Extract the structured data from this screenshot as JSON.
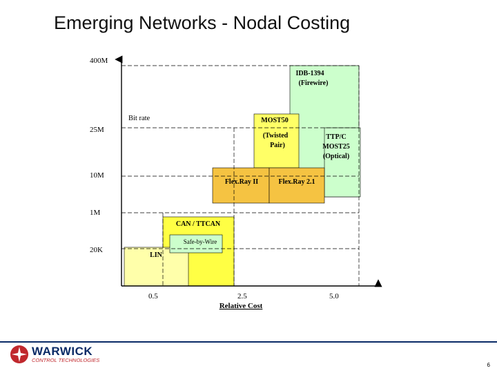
{
  "slide": {
    "title": "Emerging Networks - Nodal Costing",
    "page_number": "6"
  },
  "logo": {
    "name": "WARWICK",
    "subtitle": "CONTROL TECHNOLOGIES"
  },
  "chart_data": {
    "type": "diagram",
    "xlabel": "Relative Cost",
    "x_ticks": [
      "0.5",
      "2.5",
      "5.0"
    ],
    "y_label_inline": "Bit rate",
    "y_ticks": [
      "400M",
      "25M",
      "10M",
      "1M",
      "20K"
    ],
    "regions": [
      {
        "name": "IDB-1394",
        "label_lines": [
          "IDB-1394",
          "(Firewire)"
        ],
        "color": "#ccffcc"
      },
      {
        "name": "TTP/C MOST25",
        "label_lines": [
          "TTP/C",
          "MOST25",
          "(Optical)"
        ],
        "color": "#ccffcc"
      },
      {
        "name": "MOST50",
        "label_lines": [
          "MOST50",
          "(Twisted",
          "Pair)"
        ],
        "color": "#ffff66"
      },
      {
        "name": "Flex.Ray II",
        "label_lines": [
          "Flex.Ray II"
        ],
        "color": "#f5c342"
      },
      {
        "name": "Flex.Ray 2.1",
        "label_lines": [
          "Flex.Ray 2.1"
        ],
        "color": "#f5c342"
      },
      {
        "name": "CAN / TTCAN",
        "label_lines": [
          "CAN / TTCAN"
        ],
        "color": "#ffff44"
      },
      {
        "name": "Safe-by-Wire",
        "label_lines": [
          "Safe-by-Wire"
        ],
        "color": "#ccffcc"
      },
      {
        "name": "LIN",
        "label_lines": [
          "LIN"
        ],
        "color": "#ffffaa"
      }
    ]
  }
}
